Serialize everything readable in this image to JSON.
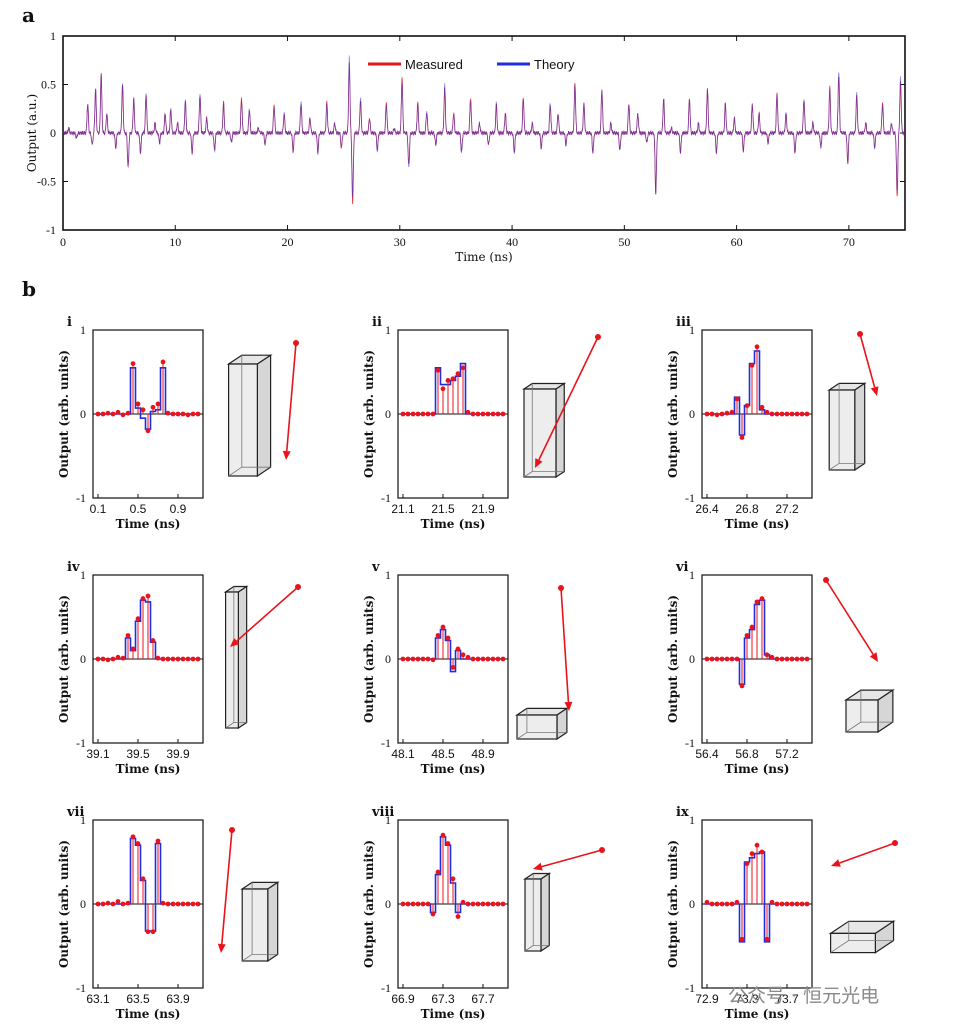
{
  "panel_a_letter": "a",
  "panel_b_letter": "b",
  "watermark": "公众号 · 恒元光电",
  "colors": {
    "measured": "#e8141c",
    "theory": "#1f2de0",
    "box_fill": "#e6e6e6",
    "box_stroke": "#222222"
  },
  "chart_data": [
    {
      "type": "line",
      "panel": "a",
      "xlabel": "Time (ns)",
      "ylabel": "Output (a.u.)",
      "xlim": [
        0,
        75
      ],
      "ylim": [
        -1,
        1
      ],
      "xticks": [
        0,
        10,
        20,
        30,
        40,
        50,
        60,
        70
      ],
      "yticks": [
        1,
        0.5,
        0,
        -0.5,
        -1
      ],
      "ytick_labels": [
        "1",
        "0.5",
        "0",
        "-0.5",
        "-1"
      ],
      "legend": [
        "Measured",
        "Theory"
      ],
      "legend_position": "top-center",
      "series": [
        {
          "name": "Measured",
          "color": "#e8141c"
        },
        {
          "name": "Theory",
          "color": "#1f2de0"
        }
      ],
      "events": [
        [
          0.5,
          0.05
        ],
        [
          1.2,
          -0.05
        ],
        [
          2.2,
          0.3
        ],
        [
          2.6,
          -0.12
        ],
        [
          2.9,
          0.45
        ],
        [
          3.4,
          0.6
        ],
        [
          3.9,
          0.2
        ],
        [
          4.7,
          -0.15
        ],
        [
          5.3,
          0.5
        ],
        [
          5.8,
          -0.35
        ],
        [
          6.3,
          0.35
        ],
        [
          6.9,
          -0.2
        ],
        [
          7.4,
          0.4
        ],
        [
          8.2,
          0.1
        ],
        [
          8.6,
          -0.1
        ],
        [
          9.1,
          0.2
        ],
        [
          9.6,
          0.25
        ],
        [
          10.2,
          0.1
        ],
        [
          10.9,
          0.33
        ],
        [
          11.5,
          -0.2
        ],
        [
          12.2,
          0.4
        ],
        [
          12.8,
          0.15
        ],
        [
          13.5,
          -0.18
        ],
        [
          14.3,
          0.3
        ],
        [
          15.0,
          -0.1
        ],
        [
          15.9,
          0.35
        ],
        [
          16.6,
          0.25
        ],
        [
          17.4,
          0.05
        ],
        [
          18.0,
          -0.12
        ],
        [
          18.8,
          0.28
        ],
        [
          19.7,
          0.2
        ],
        [
          20.5,
          -0.18
        ],
        [
          21.2,
          0.32
        ],
        [
          22.0,
          0.15
        ],
        [
          22.7,
          -0.2
        ],
        [
          23.5,
          0.3
        ],
        [
          24.2,
          0.1
        ],
        [
          24.8,
          -0.15
        ],
        [
          25.5,
          0.75
        ],
        [
          25.8,
          -0.68
        ],
        [
          26.5,
          0.35
        ],
        [
          27.3,
          0.15
        ],
        [
          28.0,
          -0.18
        ],
        [
          28.8,
          0.3
        ],
        [
          29.5,
          0.05
        ],
        [
          30.2,
          0.55
        ],
        [
          30.8,
          -0.35
        ],
        [
          31.6,
          0.3
        ],
        [
          32.4,
          0.22
        ],
        [
          33.2,
          -0.12
        ],
        [
          34.0,
          0.48
        ],
        [
          34.8,
          0.2
        ],
        [
          35.5,
          -0.2
        ],
        [
          36.3,
          0.35
        ],
        [
          37.1,
          0.1
        ],
        [
          37.9,
          -0.12
        ],
        [
          38.6,
          0.3
        ],
        [
          39.4,
          0.2
        ],
        [
          40.2,
          -0.2
        ],
        [
          41.0,
          0.35
        ],
        [
          41.8,
          0.1
        ],
        [
          42.6,
          -0.15
        ],
        [
          43.4,
          0.3
        ],
        [
          44.1,
          0.2
        ],
        [
          44.8,
          -0.12
        ],
        [
          45.6,
          0.5
        ],
        [
          46.4,
          0.3
        ],
        [
          47.2,
          -0.2
        ],
        [
          48.0,
          0.45
        ],
        [
          48.8,
          0.1
        ],
        [
          49.6,
          -0.18
        ],
        [
          50.4,
          0.3
        ],
        [
          51.2,
          0.2
        ],
        [
          52.0,
          -0.1
        ],
        [
          52.8,
          -0.62
        ],
        [
          53.5,
          0.35
        ],
        [
          54.2,
          0.05
        ],
        [
          55.0,
          -0.2
        ],
        [
          55.8,
          0.35
        ],
        [
          56.6,
          0.1
        ],
        [
          57.4,
          0.45
        ],
        [
          58.2,
          -0.2
        ],
        [
          59.0,
          0.3
        ],
        [
          59.8,
          0.15
        ],
        [
          60.6,
          -0.18
        ],
        [
          61.4,
          0.3
        ],
        [
          62.0,
          0.2
        ],
        [
          62.8,
          -0.1
        ],
        [
          63.6,
          0.4
        ],
        [
          64.4,
          0.2
        ],
        [
          65.2,
          -0.2
        ],
        [
          66.0,
          0.35
        ],
        [
          66.8,
          0.1
        ],
        [
          67.5,
          -0.15
        ],
        [
          68.3,
          0.45
        ],
        [
          69.1,
          0.62
        ],
        [
          69.9,
          -0.3
        ],
        [
          70.7,
          0.4
        ],
        [
          71.5,
          0.1
        ],
        [
          72.3,
          -0.15
        ],
        [
          73.0,
          0.3
        ],
        [
          73.8,
          0.1
        ],
        [
          74.3,
          -0.62
        ],
        [
          74.6,
          0.55
        ]
      ]
    },
    {
      "type": "stem-step",
      "panel": "b-i",
      "label": "i",
      "xticks": [
        "0.1",
        "0.5",
        "0.9"
      ],
      "xlim": [
        0.05,
        1.15
      ],
      "xlabel": "Time (ns)",
      "ylabel": "Output (arb. units)",
      "ylim": [
        -1,
        1
      ],
      "yticks": [
        "1",
        "0",
        "-1"
      ],
      "x0": 0.1,
      "dt": 0.05,
      "theory": [
        0,
        0,
        0,
        0,
        0,
        0,
        0,
        0.55,
        0.07,
        -0.05,
        -0.18,
        0.03,
        0.05,
        0.55,
        0,
        0,
        0,
        0,
        0,
        0,
        0
      ],
      "measured": [
        0,
        0,
        0.01,
        0,
        0.02,
        -0.01,
        0.01,
        0.6,
        0.12,
        0.05,
        -0.2,
        0.08,
        0.12,
        0.62,
        0.01,
        0,
        0,
        0,
        -0.01,
        0,
        0
      ],
      "box": {
        "w": 0.18,
        "h": 0.7,
        "d": 0.16
      },
      "arrow": {
        "dir": "down"
      }
    },
    {
      "type": "stem-step",
      "panel": "b-ii",
      "label": "ii",
      "xticks": [
        "21.1",
        "21.5",
        "21.9"
      ],
      "xlim": [
        21.05,
        22.15
      ],
      "xlabel": "Time (ns)",
      "ylabel": "Output (arb. units)",
      "ylim": [
        -1,
        1
      ],
      "yticks": [
        "1",
        "0",
        "-1"
      ],
      "x0": 21.1,
      "dt": 0.05,
      "theory": [
        0,
        0,
        0,
        0,
        0,
        0,
        0,
        0.55,
        0.35,
        0.35,
        0.4,
        0.45,
        0.6,
        0,
        0,
        0,
        0,
        0,
        0,
        0,
        0
      ],
      "measured": [
        0,
        0,
        0,
        0,
        0,
        0,
        0,
        0.52,
        0.3,
        0.4,
        0.42,
        0.48,
        0.55,
        0.02,
        0,
        0,
        0,
        0,
        0,
        0,
        0
      ],
      "box": {
        "w": 0.2,
        "h": 0.55,
        "d": 0.1
      },
      "arrow": {
        "dir": "down-left"
      }
    },
    {
      "type": "stem-step",
      "panel": "b-iii",
      "label": "iii",
      "xticks": [
        "26.4",
        "26.8",
        "27.2"
      ],
      "xlim": [
        26.35,
        27.45
      ],
      "xlabel": "Time (ns)",
      "ylabel": "Output (arb. units)",
      "ylim": [
        -1,
        1
      ],
      "yticks": [
        "1",
        "0",
        "-1"
      ],
      "x0": 26.4,
      "dt": 0.05,
      "theory": [
        0,
        0,
        0,
        0,
        0,
        0,
        0.2,
        -0.25,
        0.1,
        0.6,
        0.75,
        0.05,
        0,
        0,
        0,
        0,
        0,
        0,
        0,
        0,
        0
      ],
      "measured": [
        0,
        0,
        -0.01,
        0,
        0.01,
        0.02,
        0.18,
        -0.28,
        0.1,
        0.58,
        0.8,
        0.08,
        0.02,
        0,
        0,
        0,
        0,
        0,
        0,
        0,
        0
      ],
      "box": {
        "w": 0.16,
        "h": 0.5,
        "d": 0.12
      },
      "arrow": {
        "dir": "down"
      }
    },
    {
      "type": "stem-step",
      "panel": "b-iv",
      "label": "iv",
      "xticks": [
        "39.1",
        "39.5",
        "39.9"
      ],
      "xlim": [
        39.05,
        40.15
      ],
      "xlabel": "Time (ns)",
      "ylabel": "Output (arb. units)",
      "ylim": [
        -1,
        1
      ],
      "yticks": [
        "1",
        "0",
        "-1"
      ],
      "x0": 39.1,
      "dt": 0.05,
      "theory": [
        0,
        0,
        0,
        0,
        0,
        0,
        0.25,
        0.1,
        0.45,
        0.7,
        0.68,
        0.2,
        0,
        0,
        0,
        0,
        0,
        0,
        0,
        0,
        0
      ],
      "measured": [
        0,
        0,
        -0.01,
        0,
        0.02,
        0.01,
        0.28,
        0.12,
        0.48,
        0.72,
        0.75,
        0.22,
        0.01,
        0,
        0,
        0,
        0,
        0,
        0,
        0,
        0
      ],
      "box": {
        "w": 0.08,
        "h": 0.85,
        "d": 0.1
      },
      "arrow": {
        "dir": "down-left-shallow"
      }
    },
    {
      "type": "stem-step",
      "panel": "b-v",
      "label": "v",
      "xticks": [
        "48.1",
        "48.5",
        "48.9"
      ],
      "xlim": [
        48.05,
        49.15
      ],
      "xlabel": "Time (ns)",
      "ylabel": "Output (arb. units)",
      "ylim": [
        -1,
        1
      ],
      "yticks": [
        "1",
        "0",
        "-1"
      ],
      "x0": 48.1,
      "dt": 0.05,
      "theory": [
        0,
        0,
        0,
        0,
        0,
        0,
        0,
        0.25,
        0.35,
        0.22,
        -0.15,
        0.1,
        0,
        0,
        0,
        0,
        0,
        0,
        0,
        0,
        0
      ],
      "measured": [
        0,
        0,
        0,
        0,
        0,
        0,
        -0.01,
        0.28,
        0.38,
        0.25,
        -0.1,
        0.12,
        0.05,
        0.02,
        0,
        0,
        0,
        0,
        0,
        0,
        0
      ],
      "box": {
        "w": 0.25,
        "h": 0.15,
        "d": 0.12
      },
      "arrow": {
        "dir": "down"
      }
    },
    {
      "type": "stem-step",
      "panel": "b-vi",
      "label": "vi",
      "xticks": [
        "56.4",
        "56.8",
        "57.2"
      ],
      "xlim": [
        56.35,
        57.45
      ],
      "xlabel": "Time (ns)",
      "ylabel": "Output (arb. units)",
      "ylim": [
        -1,
        1
      ],
      "yticks": [
        "1",
        "0",
        "-1"
      ],
      "x0": 56.4,
      "dt": 0.05,
      "theory": [
        0,
        0,
        0,
        0,
        0,
        0,
        0,
        -0.3,
        0.25,
        0.35,
        0.65,
        0.7,
        0.05,
        0,
        0,
        0,
        0,
        0,
        0,
        0,
        0
      ],
      "measured": [
        0,
        0,
        0,
        0,
        0,
        0,
        0,
        -0.32,
        0.28,
        0.38,
        0.68,
        0.72,
        0.05,
        0.02,
        0,
        0,
        0,
        0,
        0,
        0,
        0
      ],
      "box": {
        "w": 0.2,
        "h": 0.2,
        "d": 0.18
      },
      "arrow": {
        "dir": "down-right"
      }
    },
    {
      "type": "stem-step",
      "panel": "b-vii",
      "label": "vii",
      "xticks": [
        "63.1",
        "63.5",
        "63.9"
      ],
      "xlim": [
        63.05,
        64.15
      ],
      "xlabel": "Time (ns)",
      "ylabel": "Output (arb. units)",
      "ylim": [
        -1,
        1
      ],
      "yticks": [
        "1",
        "0",
        "-1"
      ],
      "x0": 63.1,
      "dt": 0.05,
      "theory": [
        0,
        0,
        0,
        0,
        0,
        0,
        0,
        0.78,
        0.7,
        0.28,
        -0.32,
        -0.32,
        0.72,
        0,
        0,
        0,
        0,
        0,
        0,
        0,
        0
      ],
      "measured": [
        0,
        0,
        0.01,
        0,
        0.03,
        0,
        0.01,
        0.8,
        0.72,
        0.3,
        -0.33,
        -0.33,
        0.75,
        0.01,
        0,
        0,
        0,
        0,
        0,
        0,
        0
      ],
      "box": {
        "w": 0.16,
        "h": 0.45,
        "d": 0.12
      },
      "arrow": {
        "dir": "down"
      }
    },
    {
      "type": "stem-step",
      "panel": "b-viii",
      "label": "viii",
      "xticks": [
        "66.9",
        "67.3",
        "67.7"
      ],
      "xlim": [
        66.85,
        67.95
      ],
      "xlabel": "Time (ns)",
      "ylabel": "Output (arb. units)",
      "ylim": [
        -1,
        1
      ],
      "yticks": [
        "1",
        "0",
        "-1"
      ],
      "x0": 66.9,
      "dt": 0.05,
      "theory": [
        0,
        0,
        0,
        0,
        0,
        0,
        -0.1,
        0.35,
        0.8,
        0.7,
        0.25,
        -0.1,
        0,
        0,
        0,
        0,
        0,
        0,
        0,
        0,
        0
      ],
      "measured": [
        0,
        0,
        0,
        0,
        0,
        0,
        -0.12,
        0.38,
        0.82,
        0.72,
        0.3,
        -0.15,
        0.02,
        0,
        0,
        0,
        0,
        0,
        0,
        0,
        0
      ],
      "box": {
        "w": 0.1,
        "h": 0.45,
        "d": 0.1
      },
      "arrow": {
        "dir": "left"
      }
    },
    {
      "type": "stem-step",
      "panel": "b-ix",
      "label": "ix",
      "xticks": [
        "72.9",
        "73.3",
        "73.7"
      ],
      "xlim": [
        72.85,
        73.95
      ],
      "xlabel": "Time (ns)",
      "ylabel": "Output (arb. units)",
      "ylim": [
        -1,
        1
      ],
      "yticks": [
        "1",
        "0",
        "-1"
      ],
      "x0": 72.9,
      "dt": 0.05,
      "theory": [
        0,
        0,
        0,
        0,
        0,
        0,
        0,
        -0.45,
        0.5,
        0.55,
        0.6,
        0.62,
        -0.45,
        0,
        0,
        0,
        0,
        0,
        0,
        0,
        0
      ],
      "measured": [
        0.02,
        0,
        0,
        0,
        0,
        0,
        0.02,
        -0.42,
        0.48,
        0.6,
        0.7,
        0.62,
        -0.42,
        0.02,
        0,
        0,
        0,
        0,
        0,
        0,
        0
      ],
      "box": {
        "w": 0.28,
        "h": 0.12,
        "d": 0.22
      },
      "arrow": {
        "dir": "left"
      }
    }
  ]
}
